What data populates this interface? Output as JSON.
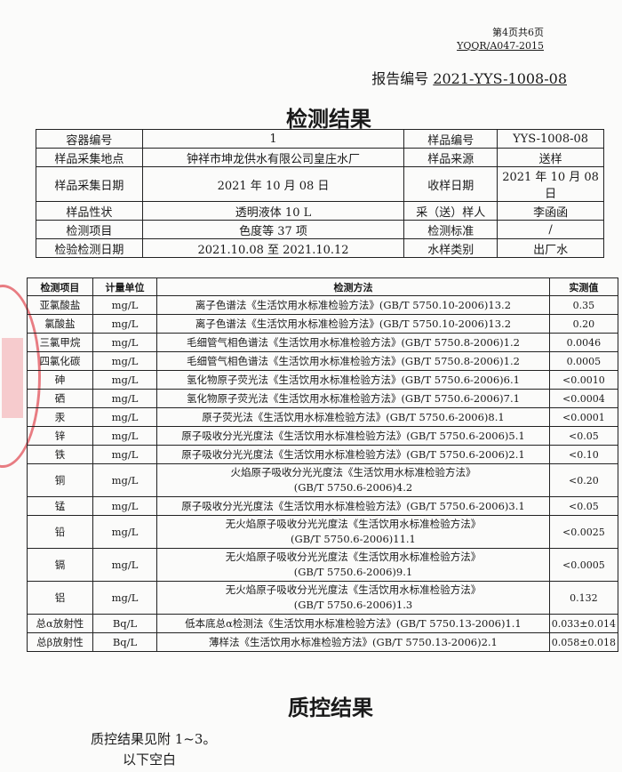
{
  "header": {
    "page_number": "第4页共6页",
    "form_code": "YQQR/A047-2015",
    "report_label": "报告编号",
    "report_number": "2021-YYS-1008-08"
  },
  "title": "检测结果",
  "info": [
    [
      "容器编号",
      "1",
      "样品编号",
      "YYS-1008-08"
    ],
    [
      "样品采集地点",
      "钟祥市坤龙供水有限公司皇庄水厂",
      "样品来源",
      "送样"
    ],
    [
      "样品采集日期",
      "2021 年 10 月 08 日",
      "收样日期",
      "2021 年 10 月 08 日"
    ],
    [
      "样品性状",
      "透明液体 10 L",
      "采（送）样人",
      "李函函"
    ],
    [
      "检测项目",
      "色度等 37 项",
      "检测标准",
      "/"
    ],
    [
      "检验检测日期",
      "2021.10.08 至 2021.10.12",
      "水样类别",
      "出厂水"
    ]
  ],
  "results": {
    "headers": [
      "检测项目",
      "计量单位",
      "检测方法",
      "实测值"
    ],
    "rows": [
      {
        "item": "亚氯酸盐",
        "unit": "mg/L",
        "method": "离子色谱法《生活饮用水标准检验方法》(GB/T 5750.10-2006)13.2",
        "value": "0.35"
      },
      {
        "item": "氯酸盐",
        "unit": "mg/L",
        "method": "离子色谱法《生活饮用水标准检验方法》(GB/T 5750.10-2006)13.2",
        "value": "0.20"
      },
      {
        "item": "三氯甲烷",
        "unit": "mg/L",
        "method": "毛细管气相色谱法《生活饮用水标准检验方法》(GB/T 5750.8-2006)1.2",
        "value": "0.0046"
      },
      {
        "item": "四氯化碳",
        "unit": "mg/L",
        "method": "毛细管气相色谱法《生活饮用水标准检验方法》(GB/T 5750.8-2006)1.2",
        "value": "0.0005"
      },
      {
        "item": "砷",
        "unit": "mg/L",
        "method": "氢化物原子荧光法《生活饮用水标准检验方法》(GB/T 5750.6-2006)6.1",
        "value": "<0.0010"
      },
      {
        "item": "硒",
        "unit": "mg/L",
        "method": "氢化物原子荧光法《生活饮用水标准检验方法》(GB/T 5750.6-2006)7.1",
        "value": "<0.0004"
      },
      {
        "item": "汞",
        "unit": "mg/L",
        "method": "原子荧光法《生活饮用水标准检验方法》(GB/T 5750.6-2006)8.1",
        "value": "<0.0001"
      },
      {
        "item": "锌",
        "unit": "mg/L",
        "method": "原子吸收分光光度法《生活饮用水标准检验方法》(GB/T 5750.6-2006)5.1",
        "value": "<0.05"
      },
      {
        "item": "铁",
        "unit": "mg/L",
        "method": "原子吸收分光光度法《生活饮用水标准检验方法》(GB/T 5750.6-2006)2.1",
        "value": "<0.10"
      },
      {
        "item": "铜",
        "unit": "mg/L",
        "method": "火焰原子吸收分光光度法《生活饮用水标准检验方法》",
        "method2": "(GB/T 5750.6-2006)4.2",
        "value": "<0.20"
      },
      {
        "item": "锰",
        "unit": "mg/L",
        "method": "原子吸收分光光度法《生活饮用水标准检验方法》(GB/T 5750.6-2006)3.1",
        "value": "<0.05"
      },
      {
        "item": "铅",
        "unit": "mg/L",
        "method": "无火焰原子吸收分光光度法《生活饮用水标准检验方法》",
        "method2": "(GB/T 5750.6-2006)11.1",
        "value": "<0.0025"
      },
      {
        "item": "镉",
        "unit": "mg/L",
        "method": "无火焰原子吸收分光光度法《生活饮用水标准检验方法》",
        "method2": "(GB/T 5750.6-2006)9.1",
        "value": "<0.0005"
      },
      {
        "item": "铝",
        "unit": "mg/L",
        "method": "无火焰原子吸收分光光度法《生活饮用水标准检验方法》",
        "method2": "(GB/T 5750.6-2006)1.3",
        "value": "0.132"
      },
      {
        "item": "总α放射性",
        "unit": "Bq/L",
        "method": "低本底总α检测法《生活饮用水标准检验方法》(GB/T 5750.13-2006)1.1",
        "value": "0.033±0.014"
      },
      {
        "item": "总β放射性",
        "unit": "Bq/L",
        "method": "薄样法《生活饮用水标准检验方法》(GB/T 5750.13-2006)2.1",
        "value": "0.058±0.018"
      }
    ]
  },
  "qc": {
    "title": "质控结果",
    "line1": "质控结果见附 1~3。",
    "line2": "以下空白"
  },
  "colors": {
    "stamp": "#dc2832",
    "ink": "#1a1a1a"
  }
}
